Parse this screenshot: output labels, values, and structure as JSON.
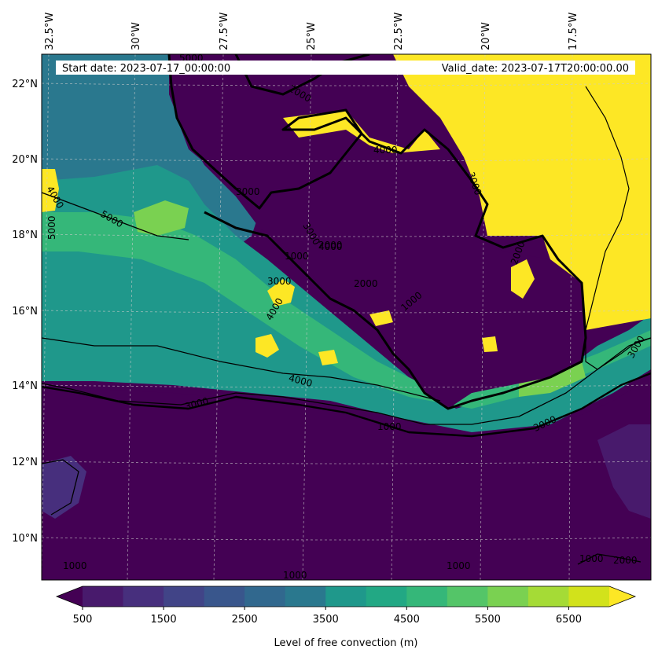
{
  "map": {
    "annotations": {
      "start_date": "Start date: 2023-07-17_00:00:00",
      "valid_date": "Valid_date: 2023-07-17T20:00:00.00"
    },
    "lon_labels": [
      "32.5°W",
      "30°W",
      "27.5°W",
      "25°W",
      "22.5°W",
      "20°W",
      "17.5°W"
    ],
    "lat_labels": [
      "22°N",
      "20°N",
      "18°N",
      "16°N",
      "14°N",
      "12°N",
      "10°N"
    ],
    "contour_labels": [
      "5000",
      "4000",
      "5000",
      "5000",
      "3000",
      "2000",
      "4000",
      "3000",
      "1000",
      "2000",
      "3000",
      "4000",
      "3000",
      "2000",
      "1000",
      "2000",
      "4000",
      "3000",
      "1000",
      "1000",
      "1000",
      "1000",
      "2000",
      "4000",
      "3000",
      "1000",
      "3000"
    ],
    "gridlines": "dashed",
    "coastline": "Africa west coast"
  },
  "colorbar": {
    "label": "Level of free convection (m)",
    "ticks": [
      "500",
      "1500",
      "2500",
      "3500",
      "4500",
      "5500",
      "6500"
    ],
    "min": 500,
    "max": 7000,
    "step": 500,
    "extend": "both",
    "colors": [
      "#440154",
      "#481a6c",
      "#472f7d",
      "#414487",
      "#39568c",
      "#31688e",
      "#2a788e",
      "#23888e",
      "#1f988b",
      "#22a884",
      "#35b779",
      "#54c568",
      "#7ad151",
      "#a5db36",
      "#d2e21b",
      "#fde725"
    ]
  }
}
